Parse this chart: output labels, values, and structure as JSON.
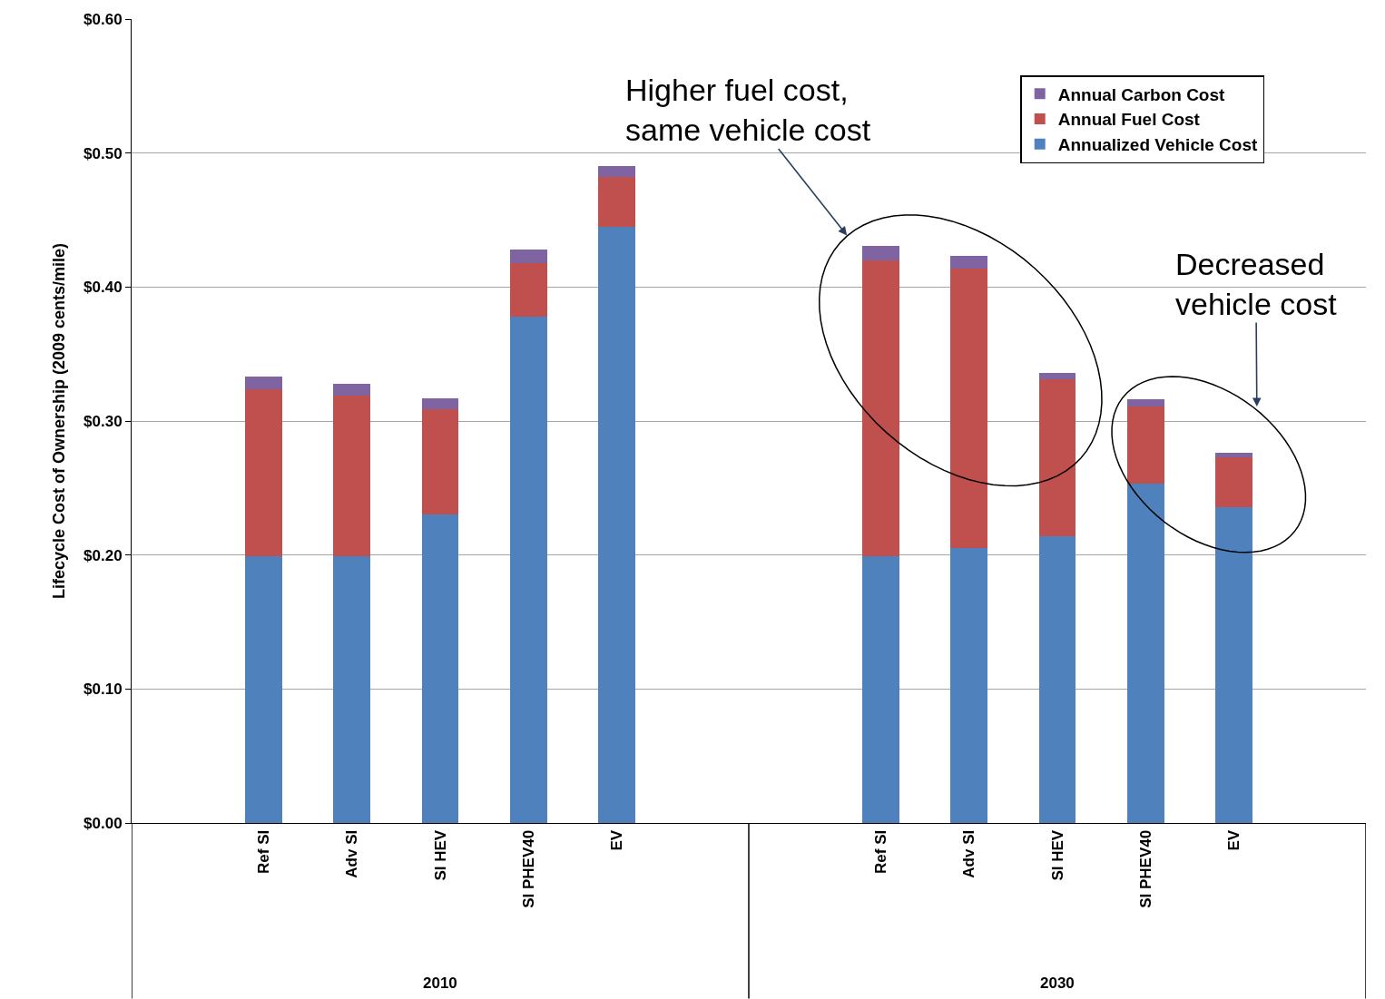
{
  "chart_data": {
    "type": "bar",
    "stacked": true,
    "categories": [
      null,
      "Ref SI",
      "Adv SI",
      "SI HEV",
      "SI PHEV40",
      "EV",
      null,
      null,
      "Ref SI",
      "Adv SI",
      "SI HEV",
      "SI PHEV40",
      "EV",
      null
    ],
    "series": [
      {
        "name": "Annualized Vehicle Cost",
        "color": "#4f81bd",
        "values": [
          null,
          0.199,
          0.199,
          0.23,
          0.378,
          0.445,
          null,
          null,
          0.199,
          0.205,
          0.214,
          0.253,
          0.236,
          null
        ]
      },
      {
        "name": "Annual Fuel Cost",
        "color": "#c0504d",
        "values": [
          null,
          0.125,
          0.12,
          0.079,
          0.04,
          0.037,
          null,
          null,
          0.221,
          0.209,
          0.117,
          0.058,
          0.037,
          null
        ]
      },
      {
        "name": "Annual Carbon Cost",
        "color": "#8064a2",
        "values": [
          null,
          0.009,
          0.009,
          0.008,
          0.01,
          0.008,
          null,
          null,
          0.011,
          0.009,
          0.005,
          0.005,
          0.003,
          null
        ]
      }
    ],
    "ylabel": "Lifecycle Cost of Ownership (2009 cents/mile)",
    "ylim": [
      0,
      0.6
    ],
    "yticks": [
      {
        "value": 0,
        "label": "$0.00"
      },
      {
        "value": 0.1,
        "label": "$0.10"
      },
      {
        "value": 0.2,
        "label": "$0.20"
      },
      {
        "value": 0.3,
        "label": "$0.30"
      },
      {
        "value": 0.4,
        "label": "$0.40"
      },
      {
        "value": 0.5,
        "label": "$0.50"
      },
      {
        "value": 0.6,
        "label": "$0.60"
      }
    ],
    "annotations": [
      "Higher fuel cost,\nsame vehicle cost",
      "Decreased\nvehicle cost",
      "2010",
      "2030"
    ],
    "grid": "y",
    "legend": "top right"
  }
}
